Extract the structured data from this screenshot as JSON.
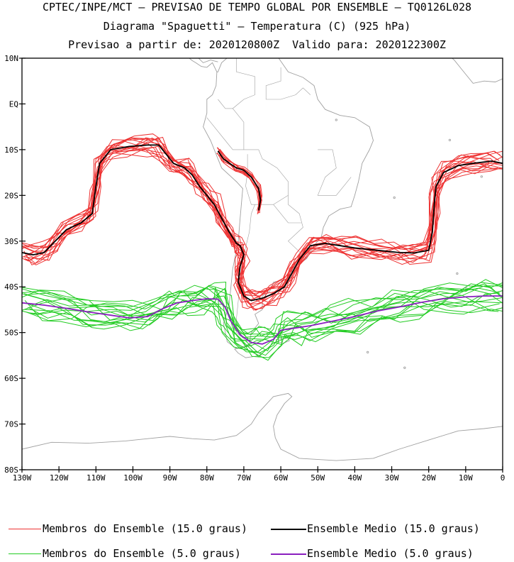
{
  "titles": {
    "line1": "CPTEC/INPE/MCT – PREVISAO DE TEMPO GLOBAL POR ENSEMBLE – TQ0126L028",
    "line2": "Diagrama \"Spaguetti\" – Temperatura (C) (925 hPa)",
    "line3": "Previsao a partir de: 2020120800Z  Valido para: 2020122300Z"
  },
  "axes": {
    "lon_min": -130,
    "lon_max": 0,
    "lat_min": -80,
    "lat_max": 10,
    "lat_ticks": [
      {
        "value": 10,
        "label": "10N"
      },
      {
        "value": 0,
        "label": "EQ"
      },
      {
        "value": -10,
        "label": "10S"
      },
      {
        "value": -20,
        "label": "20S"
      },
      {
        "value": -30,
        "label": "30S"
      },
      {
        "value": -40,
        "label": "40S"
      },
      {
        "value": -50,
        "label": "50S"
      },
      {
        "value": -60,
        "label": "60S"
      },
      {
        "value": -70,
        "label": "70S"
      },
      {
        "value": -80,
        "label": "80S"
      }
    ],
    "lon_ticks": [
      {
        "value": -130,
        "label": "130W"
      },
      {
        "value": -120,
        "label": "120W"
      },
      {
        "value": -110,
        "label": "110W"
      },
      {
        "value": -100,
        "label": "100W"
      },
      {
        "value": -90,
        "label": "90W"
      },
      {
        "value": -80,
        "label": "80W"
      },
      {
        "value": -70,
        "label": "70W"
      },
      {
        "value": -60,
        "label": "60W"
      },
      {
        "value": -50,
        "label": "50W"
      },
      {
        "value": -40,
        "label": "40W"
      },
      {
        "value": -30,
        "label": "30W"
      },
      {
        "value": -20,
        "label": "20W"
      },
      {
        "value": -10,
        "label": "10W"
      },
      {
        "value": 0,
        "label": "0"
      }
    ]
  },
  "colors": {
    "members_15": "#ee3333",
    "mean_15": "#000000",
    "members_5": "#22cc22",
    "mean_5": "#8a1fbf",
    "coast": "#a0a0a0"
  },
  "legend": {
    "members_15": "Membros do Ensemble (15.0 graus)",
    "mean_15": "Ensemble Medio (15.0 graus)",
    "members_5": "Membros do Ensemble (5.0 graus)",
    "mean_5": "Ensemble Medio (5.0 graus)"
  },
  "contours": {
    "mean_15": [
      [
        -130,
        -32.5
      ],
      [
        -127,
        -33
      ],
      [
        -124,
        -32.5
      ],
      [
        -121,
        -30
      ],
      [
        -118,
        -27.5
      ],
      [
        -114,
        -26
      ],
      [
        -111,
        -24
      ],
      [
        -110,
        -18
      ],
      [
        -109,
        -13
      ],
      [
        -106,
        -10
      ],
      [
        -101,
        -9.3
      ],
      [
        -96,
        -9
      ],
      [
        -93,
        -9
      ],
      [
        -91,
        -11
      ],
      [
        -89,
        -13
      ],
      [
        -86,
        -14
      ],
      [
        -84,
        -15.5
      ],
      [
        -82,
        -18
      ],
      [
        -80,
        -20
      ],
      [
        -78,
        -22
      ],
      [
        -76,
        -25
      ],
      [
        -74,
        -28
      ],
      [
        -72,
        -30.5
      ],
      [
        -71,
        -31
      ],
      [
        -70,
        -33
      ],
      [
        -71,
        -35.5
      ],
      [
        -71.5,
        -39
      ],
      [
        -70,
        -42
      ],
      [
        -68,
        -43
      ],
      [
        -65,
        -42.5
      ],
      [
        -62,
        -41.5
      ],
      [
        -59,
        -40
      ],
      [
        -57,
        -37
      ],
      [
        -55,
        -34
      ],
      [
        -52,
        -31
      ],
      [
        -48,
        -30.5
      ],
      [
        -44,
        -31
      ],
      [
        -40,
        -31.5
      ],
      [
        -34,
        -32
      ],
      [
        -28,
        -32.5
      ],
      [
        -24,
        -32.6
      ],
      [
        -20,
        -32
      ],
      [
        -19,
        -28
      ],
      [
        -18.5,
        -22
      ],
      [
        -18,
        -18
      ],
      [
        -16,
        -15
      ],
      [
        -12,
        -13.5
      ],
      [
        -8,
        -13
      ],
      [
        -3,
        -12.5
      ],
      [
        0,
        -13
      ]
    ],
    "mean_15b": [
      [
        -77,
        -10.3
      ],
      [
        -75.5,
        -12
      ],
      [
        -73.5,
        -13.2
      ],
      [
        -72,
        -14
      ],
      [
        -70,
        -14.5
      ],
      [
        -68,
        -16
      ],
      [
        -66,
        -18.5
      ],
      [
        -65.5,
        -21
      ],
      [
        -66,
        -23.3
      ]
    ],
    "mean_5": [
      [
        -130,
        -43.5
      ],
      [
        -124,
        -44
      ],
      [
        -118,
        -44.7
      ],
      [
        -112,
        -45.5
      ],
      [
        -106,
        -46.2
      ],
      [
        -101,
        -46.8
      ],
      [
        -96,
        -46.5
      ],
      [
        -92,
        -44.8
      ],
      [
        -88,
        -43.5
      ],
      [
        -84,
        -43
      ],
      [
        -80,
        -42.6
      ],
      [
        -77,
        -42.7
      ],
      [
        -75,
        -44.5
      ],
      [
        -73.5,
        -47.5
      ],
      [
        -71,
        -50.5
      ],
      [
        -68,
        -52.2
      ],
      [
        -65,
        -52.5
      ],
      [
        -62,
        -51.5
      ],
      [
        -60,
        -49.5
      ],
      [
        -56,
        -49
      ],
      [
        -52,
        -48.5
      ],
      [
        -46,
        -47.5
      ],
      [
        -40,
        -46.5
      ],
      [
        -34,
        -45.3
      ],
      [
        -28,
        -44.4
      ],
      [
        -22,
        -43.4
      ],
      [
        -16,
        -42.6
      ],
      [
        -10,
        -42.2
      ],
      [
        -5,
        -42
      ],
      [
        0,
        -42
      ]
    ]
  }
}
